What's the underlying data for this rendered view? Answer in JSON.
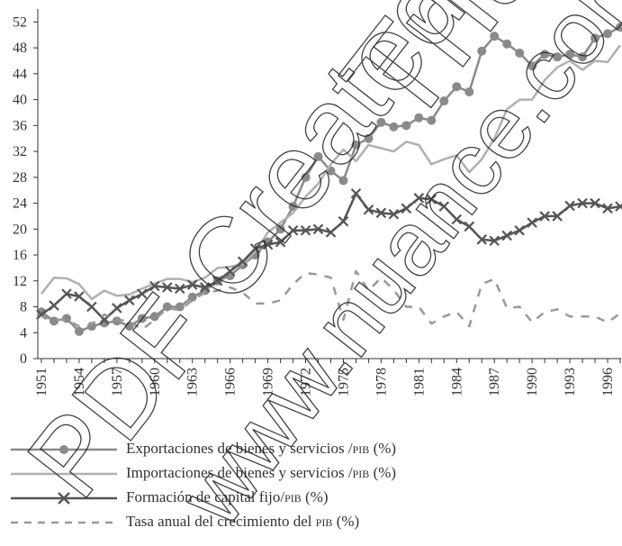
{
  "chart_data": {
    "type": "line",
    "x": [
      1951,
      1952,
      1953,
      1954,
      1955,
      1956,
      1957,
      1958,
      1959,
      1960,
      1961,
      1962,
      1963,
      1964,
      1965,
      1966,
      1967,
      1968,
      1969,
      1970,
      1971,
      1972,
      1973,
      1974,
      1975,
      1976,
      1977,
      1978,
      1979,
      1980,
      1981,
      1982,
      1983,
      1984,
      1985,
      1986,
      1987,
      1988,
      1989,
      1990,
      1991,
      1992,
      1993,
      1994,
      1995,
      1996,
      1997
    ],
    "xticks": [
      "1951",
      "1954",
      "1957",
      "1960",
      "1963",
      "1966",
      "1969",
      "1972",
      "1975",
      "1978",
      "1981",
      "1984",
      "1987",
      "1990",
      "1993",
      "1996"
    ],
    "yticks": [
      "0",
      "4",
      "8",
      "12",
      "16",
      "20",
      "24",
      "28",
      "32",
      "36",
      "40",
      "44",
      "48",
      "52"
    ],
    "ylim": [
      0,
      54
    ],
    "xlim": [
      1951,
      1997
    ],
    "grid": false,
    "legend_position": "bottom",
    "series": [
      {
        "name": "Exportaciones de bienes y servicios /PIB (%)",
        "color": "#8a8a8a",
        "style": "line-dots",
        "values": [
          7.2,
          5.8,
          6.2,
          4.2,
          5.0,
          5.5,
          5.8,
          5.0,
          6.2,
          6.5,
          8.0,
          8.0,
          9.5,
          10.5,
          12.0,
          12.8,
          14.5,
          16.0,
          18.0,
          20.0,
          23.5,
          28.0,
          31.2,
          29.0,
          27.5,
          33.0,
          34.0,
          36.5,
          35.8,
          36.0,
          37.2,
          36.8,
          39.8,
          42.0,
          41.2,
          47.5,
          49.8,
          48.6,
          47.2,
          45.2,
          47.0,
          46.6,
          47.0,
          46.6,
          49.5,
          50.2,
          51.2
        ]
      },
      {
        "name": "Importaciones de bienes y servicios /PIB (%)",
        "color": "#b0b0b0",
        "style": "line",
        "values": [
          10.0,
          12.5,
          12.4,
          11.5,
          9.2,
          10.5,
          9.7,
          9.9,
          10.8,
          11.6,
          12.3,
          12.3,
          11.8,
          12.5,
          14.0,
          14.2,
          14.6,
          16.5,
          19.5,
          21.0,
          22.5,
          25.0,
          27.0,
          30.0,
          32.3,
          30.5,
          33.0,
          32.5,
          32.0,
          33.5,
          33.0,
          30.0,
          30.8,
          31.4,
          28.8,
          30.8,
          34.0,
          38.5,
          40.0,
          40.0,
          43.0,
          45.0,
          46.0,
          44.6,
          46.0,
          45.8,
          48.4
        ]
      },
      {
        "name": "Formación de capital fijo/PIB (%)",
        "color": "#555555",
        "style": "line-x",
        "values": [
          6.8,
          8.2,
          10.0,
          9.6,
          8.0,
          6.0,
          7.8,
          9.0,
          10.0,
          11.2,
          11.0,
          10.8,
          11.4,
          11.0,
          12.0,
          13.5,
          15.0,
          17.0,
          17.6,
          18.0,
          19.8,
          19.8,
          20.0,
          19.5,
          21.2,
          25.5,
          23.0,
          22.5,
          22.3,
          23.2,
          24.8,
          24.6,
          23.5,
          21.5,
          20.4,
          18.4,
          18.2,
          19.0,
          19.8,
          21.0,
          22.0,
          22.0,
          23.6,
          24.0,
          24.0,
          23.2,
          23.5
        ]
      },
      {
        "name": "Tasa anual del crecimiento del PIB (%)",
        "color": "#999999",
        "style": "dashed",
        "values": [
          6.5,
          6.0,
          6.0,
          5.0,
          5.3,
          6.8,
          6.0,
          5.8,
          4.5,
          6.0,
          7.8,
          7.5,
          9.0,
          10.2,
          10.5,
          11.0,
          10.2,
          8.5,
          8.5,
          9.0,
          11.5,
          13.2,
          13.0,
          12.5,
          6.0,
          13.5,
          10.5,
          12.5,
          10.6,
          8.0,
          8.0,
          5.4,
          6.5,
          7.2,
          5.0,
          11.5,
          12.3,
          7.8,
          8.0,
          5.6,
          7.2,
          7.6,
          6.5,
          6.5,
          6.5,
          5.6,
          7.0
        ]
      }
    ],
    "legend": [
      {
        "text_main": "Exportaciones de bienes y servicios /",
        "text_sc": "pib",
        "text_tail": " (%)"
      },
      {
        "text_main": "Importaciones de bienes y servicios /",
        "text_sc": "pib",
        "text_tail": " (%)"
      },
      {
        "text_main": "Formación de capital fijo/",
        "text_sc": "pib",
        "text_tail": " (%)"
      },
      {
        "text_main": "Tasa anual del crecimiento del ",
        "text_sc": "pib",
        "text_tail": " (%)"
      }
    ]
  },
  "watermark": {
    "text": "PDF Created with deskPDF",
    "site": "www.nuance.com",
    "brand": "Trial",
    "color": "#222222"
  }
}
